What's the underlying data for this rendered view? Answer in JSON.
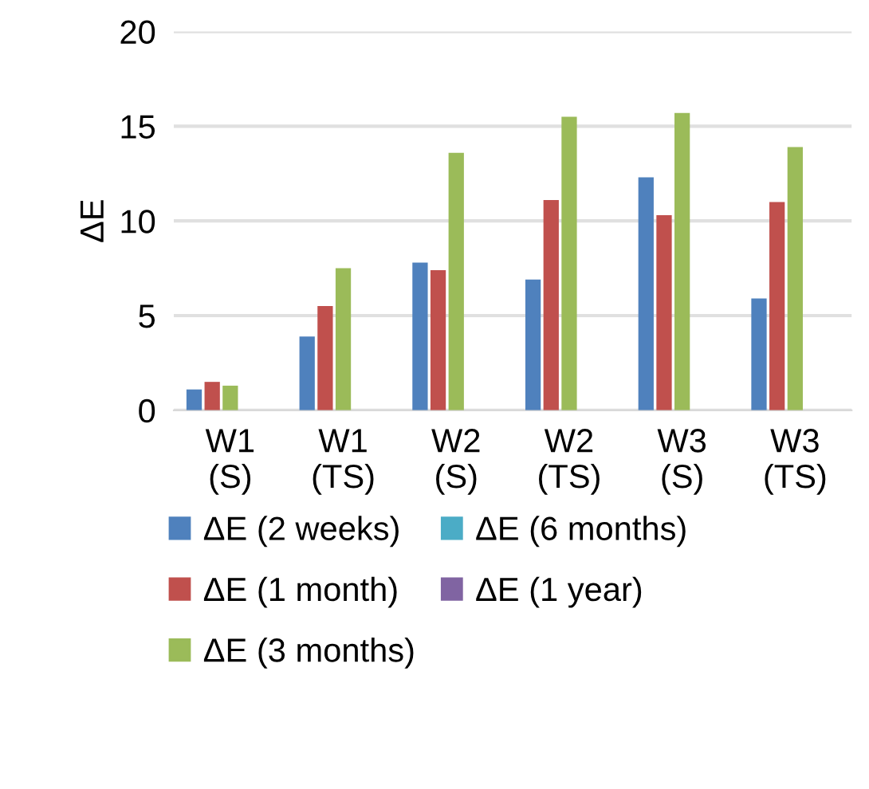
{
  "chart_data": {
    "type": "bar",
    "ylabel": "ΔE",
    "categories": [
      "W1\n(S)",
      "W1\n(TS)",
      "W2\n(S)",
      "W2\n(TS)",
      "W3\n(S)",
      "W3\n(TS)"
    ],
    "series": [
      {
        "name": "ΔE (2 weeks)",
        "color": "#4f81bd",
        "values": [
          1.1,
          3.9,
          7.8,
          6.9,
          12.3,
          5.9
        ]
      },
      {
        "name": "ΔE (1 month)",
        "color": "#c0504d",
        "values": [
          1.5,
          5.5,
          7.4,
          11.1,
          10.3,
          11.0
        ]
      },
      {
        "name": "ΔE (3 months)",
        "color": "#9bbb59",
        "values": [
          1.3,
          7.5,
          13.6,
          15.5,
          15.7,
          13.9
        ]
      },
      {
        "name": "ΔE (6 months)",
        "color": "#4bacc6",
        "values": [
          null,
          null,
          null,
          null,
          null,
          null
        ]
      },
      {
        "name": "ΔE (1 year)",
        "color": "#8064a2",
        "values": [
          null,
          null,
          null,
          null,
          null,
          null
        ]
      }
    ],
    "ylim": [
      0,
      20
    ],
    "yticks": [
      0,
      5,
      10,
      15,
      20
    ],
    "grid": "y",
    "legend": "bottom"
  }
}
